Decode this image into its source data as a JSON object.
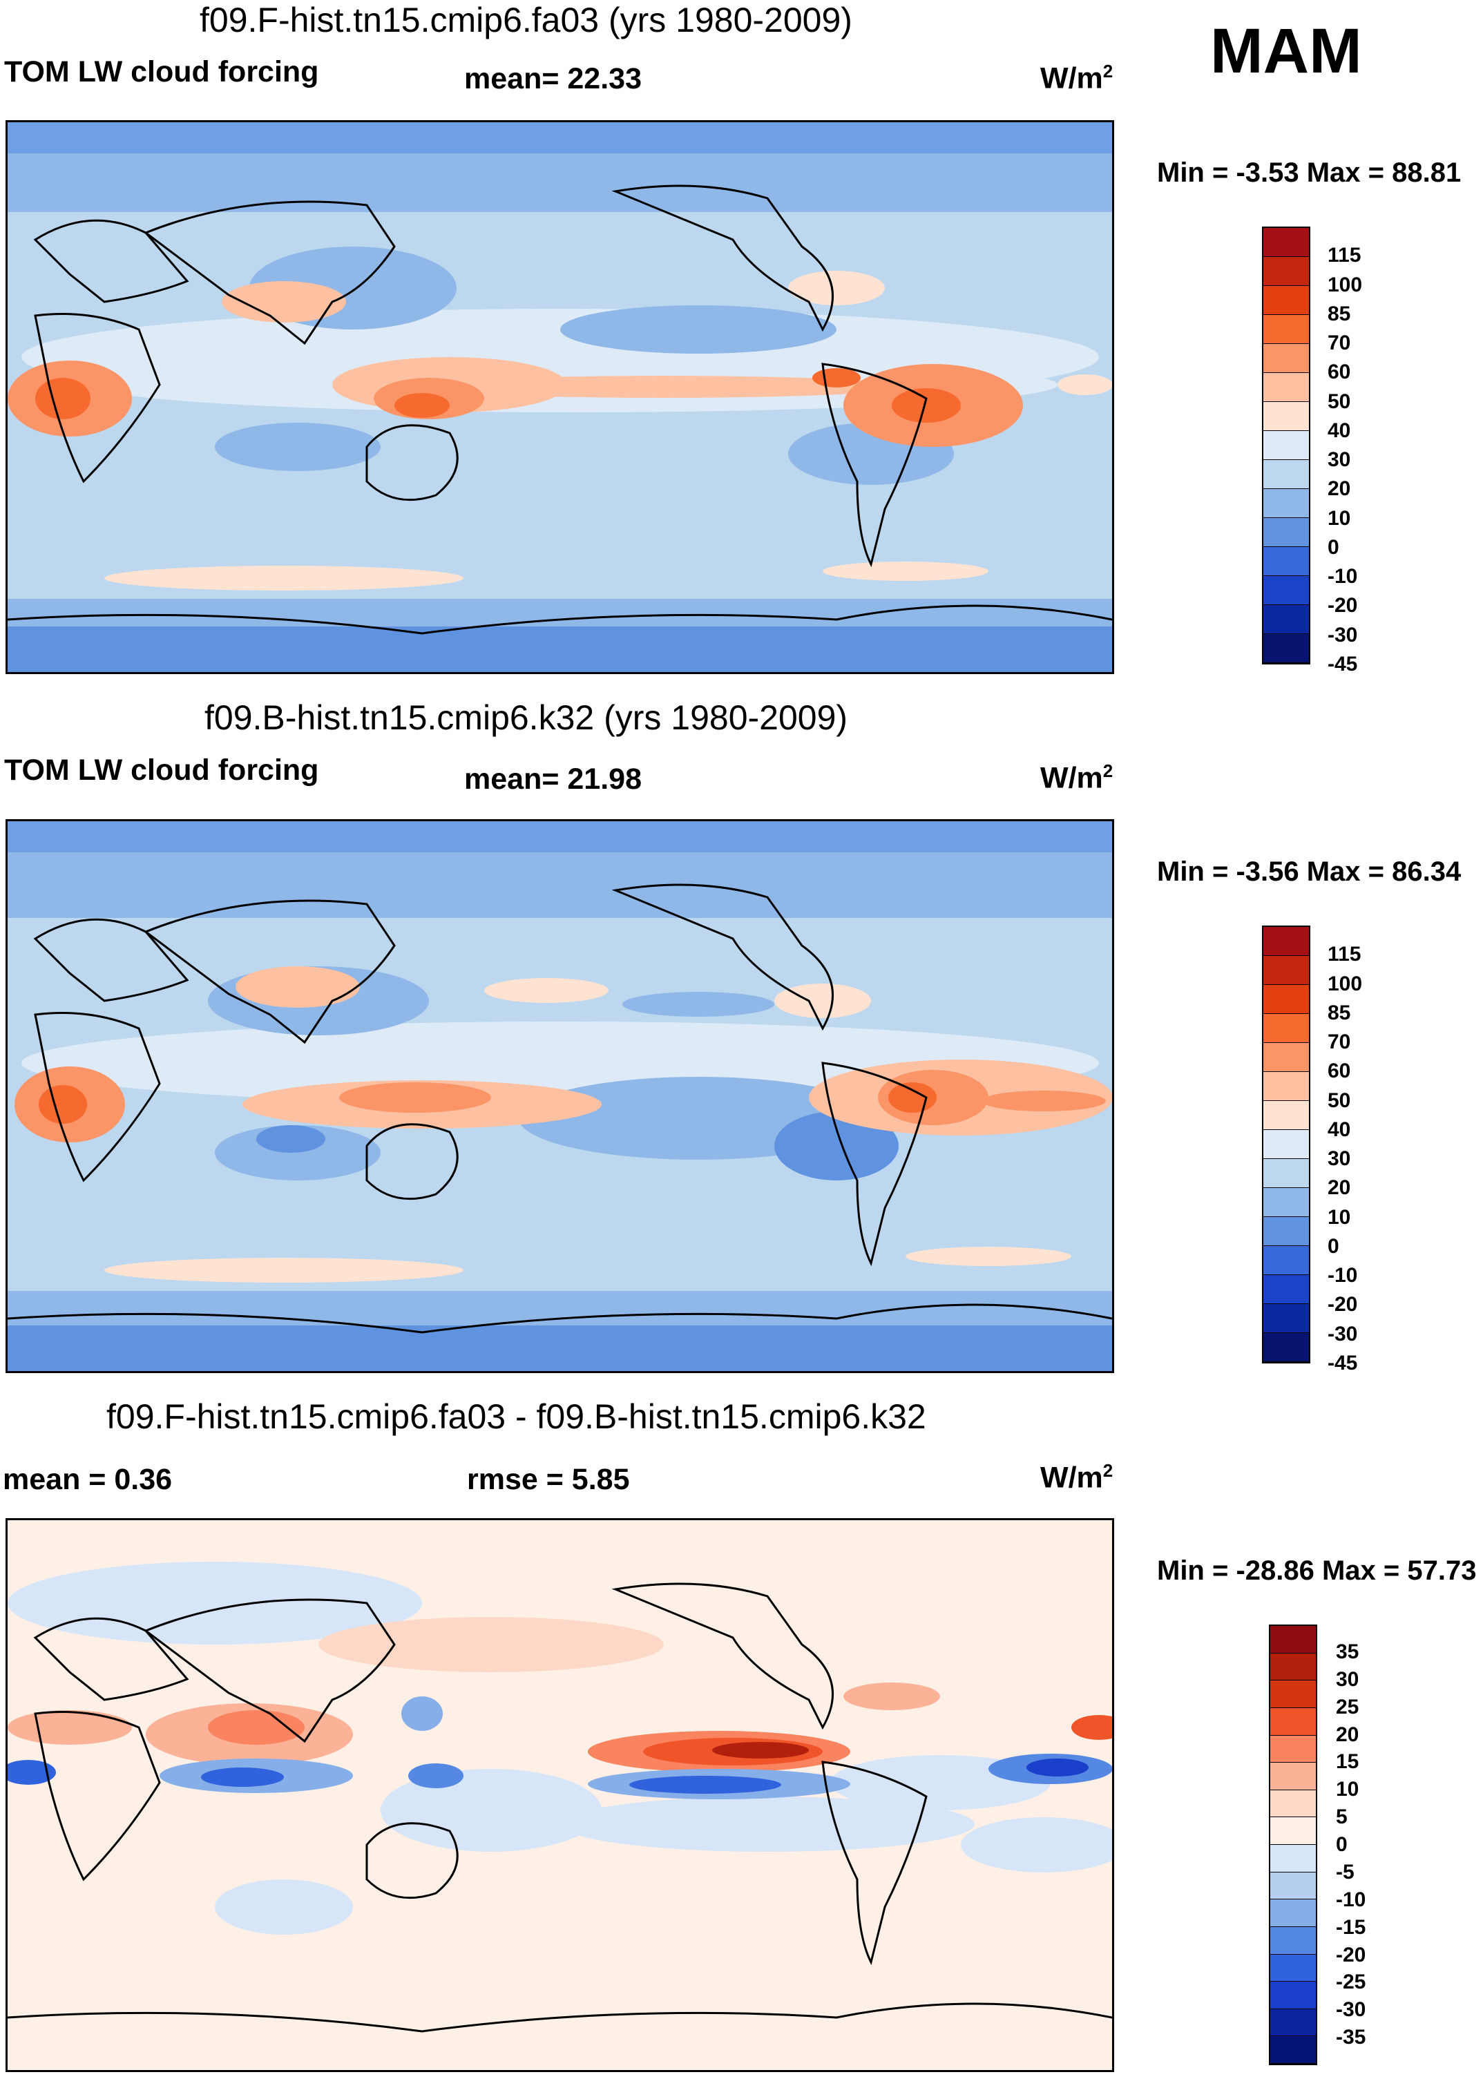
{
  "season": "MAM",
  "panels": [
    {
      "title": "f09.F-hist.tn15.cmip6.fa03 (yrs 1980-2009)",
      "left_label": "TOM LW cloud forcing",
      "center_label": "mean=  22.33",
      "units_base": "W/m",
      "units_sup": "2",
      "minmax": "Min =  -3.53 Max =  88.81",
      "cb_labels": [
        "115",
        "100",
        "85",
        "70",
        "60",
        "50",
        "40",
        "30",
        "20",
        "10",
        "0",
        "-10",
        "-20",
        "-30",
        "-45"
      ],
      "cb_colors": [
        "#a50f15",
        "#c3270e",
        "#e34012",
        "#f76a2f",
        "#fb9567",
        "#fdc1a2",
        "#fee3d2",
        "#deebf7",
        "#bdd7ef",
        "#8fb8e8",
        "#5f93e0",
        "#3769d9",
        "#1a43c8",
        "#0b2aa2",
        "#06136f"
      ]
    },
    {
      "title": "f09.B-hist.tn15.cmip6.k32 (yrs 1980-2009)",
      "left_label": "TOM LW cloud forcing",
      "center_label": "mean=  21.98",
      "units_base": "W/m",
      "units_sup": "2",
      "minmax": "Min =  -3.56 Max =  86.34",
      "cb_labels": [
        "115",
        "100",
        "85",
        "70",
        "60",
        "50",
        "40",
        "30",
        "20",
        "10",
        "0",
        "-10",
        "-20",
        "-30",
        "-45"
      ],
      "cb_colors": [
        "#a50f15",
        "#c3270e",
        "#e34012",
        "#f76a2f",
        "#fb9567",
        "#fdc1a2",
        "#fee3d2",
        "#deebf7",
        "#bdd7ef",
        "#8fb8e8",
        "#5f93e0",
        "#3769d9",
        "#1a43c8",
        "#0b2aa2",
        "#06136f"
      ]
    },
    {
      "title": "f09.F-hist.tn15.cmip6.fa03 - f09.B-hist.tn15.cmip6.k32",
      "left_label": "mean =   0.36",
      "center_label": "rmse =   5.85",
      "units_base": "W/m",
      "units_sup": "2",
      "minmax": "Min = -28.86 Max =  57.73",
      "cb_labels": [
        "35",
        "30",
        "25",
        "20",
        "15",
        "10",
        "5",
        "0",
        "-5",
        "-10",
        "-15",
        "-20",
        "-25",
        "-30",
        "-35"
      ],
      "cb_colors": [
        "#8e0b0f",
        "#b21f0c",
        "#d6360f",
        "#ef5528",
        "#fb8460",
        "#fcb297",
        "#fdd8c6",
        "#fef0e6",
        "#d6e5f7",
        "#b4cff0",
        "#86aee8",
        "#5588e2",
        "#2f62dc",
        "#1a3fca",
        "#0b24a0",
        "#061478"
      ]
    }
  ]
}
